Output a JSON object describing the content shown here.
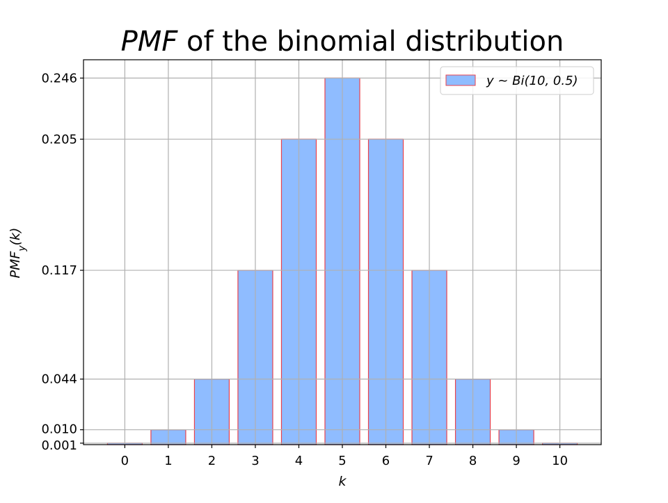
{
  "chart_data": {
    "type": "bar",
    "title_italic": "PMF",
    "title_rest": " of the binomial distribution",
    "xlabel": "k",
    "ylabel_main": "PMF",
    "ylabel_sub": "y",
    "ylabel_tail": "(k)",
    "legend_label": "y ~ Bi(10, 0.5)",
    "legend_position": "top-right",
    "grid": true,
    "categories": [
      "0",
      "1",
      "2",
      "3",
      "4",
      "5",
      "6",
      "7",
      "8",
      "9",
      "10"
    ],
    "values": [
      0.001,
      0.01,
      0.044,
      0.117,
      0.205,
      0.246,
      0.205,
      0.117,
      0.044,
      0.01,
      0.001
    ],
    "y_ticks": [
      "0.001",
      "0.010",
      "0.044",
      "0.117",
      "0.205",
      "0.246"
    ],
    "xlim": [
      -0.95,
      10.95
    ],
    "ylim": [
      0,
      0.2583
    ],
    "colors": {
      "bar_fill": "#8fbcff",
      "bar_edge": "#e8424d",
      "grid": "#b0b0b0",
      "axis": "#000000"
    }
  }
}
